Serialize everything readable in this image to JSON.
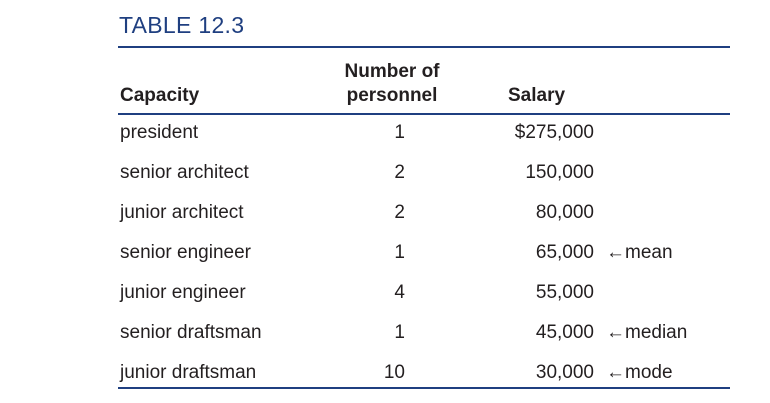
{
  "title": "TABLE 12.3",
  "headers": {
    "capacity": "Capacity",
    "number_line1": "Number of",
    "number_line2": "personnel",
    "salary": "Salary"
  },
  "rows": [
    {
      "capacity": "president",
      "number": "1",
      "salary": "$275,000",
      "note": ""
    },
    {
      "capacity": "senior architect",
      "number": "2",
      "salary": "150,000",
      "note": ""
    },
    {
      "capacity": "junior architect",
      "number": "2",
      "salary": "80,000",
      "note": ""
    },
    {
      "capacity": "senior engineer",
      "number": "1",
      "salary": "65,000",
      "note": "←mean"
    },
    {
      "capacity": "junior engineer",
      "number": "4",
      "salary": "55,000",
      "note": ""
    },
    {
      "capacity": "senior draftsman",
      "number": "1",
      "salary": "45,000",
      "note": "←median"
    },
    {
      "capacity": "junior draftsman",
      "number": "10",
      "salary": "30,000",
      "note": "←mode"
    }
  ],
  "colors": {
    "accent": "#1f3f80",
    "text": "#231f20"
  }
}
